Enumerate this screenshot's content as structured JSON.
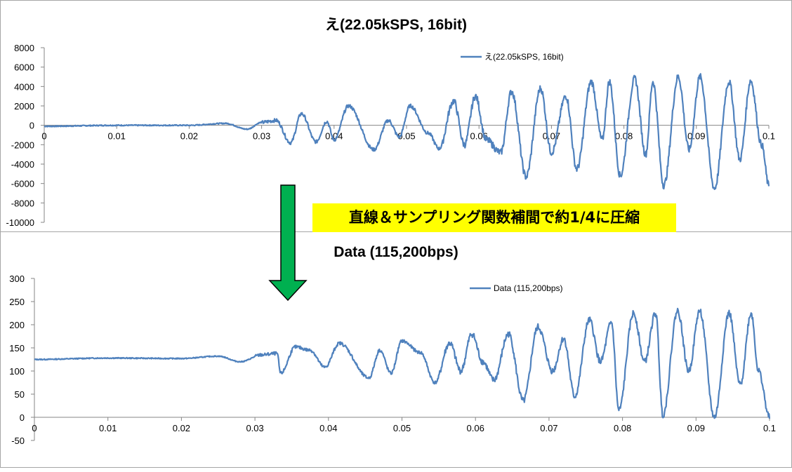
{
  "chart_data": [
    {
      "type": "line",
      "title": "え(22.05kSPS, 16bit)",
      "series": [
        {
          "name": "え(22.05kSPS, 16bit)",
          "color": "#4f81bd"
        }
      ],
      "xlim": [
        0,
        0.1
      ],
      "ylim": [
        -10000,
        8000
      ],
      "x_ticks": [
        "0",
        "0.01",
        "0.02",
        "0.03",
        "0.04",
        "0.05",
        "0.06",
        "0.07",
        "0.08",
        "0.09",
        "0.1"
      ],
      "y_ticks": [
        "8000",
        "6000",
        "4000",
        "2000",
        "0",
        "-2000",
        "-4000",
        "-6000",
        "-8000",
        "-10000"
      ],
      "legend": "top-right",
      "grid": false,
      "waveform_points": [
        [
          0,
          -100
        ],
        [
          0.01,
          0
        ],
        [
          0.02,
          0
        ],
        [
          0.025,
          200
        ],
        [
          0.028,
          -400
        ],
        [
          0.03,
          300
        ],
        [
          0.032,
          500
        ],
        [
          0.034,
          -1800
        ],
        [
          0.0355,
          1200
        ],
        [
          0.0375,
          -1700
        ],
        [
          0.039,
          400
        ],
        [
          0.04,
          -1500
        ],
        [
          0.042,
          2000
        ],
        [
          0.0455,
          -2500
        ],
        [
          0.0475,
          500
        ],
        [
          0.049,
          -1200
        ],
        [
          0.0505,
          2000
        ],
        [
          0.053,
          -800
        ],
        [
          0.0545,
          -2400
        ],
        [
          0.0565,
          2500
        ],
        [
          0.058,
          -2000
        ],
        [
          0.0595,
          3000
        ],
        [
          0.061,
          -1500
        ],
        [
          0.063,
          -2800
        ],
        [
          0.0645,
          3500
        ],
        [
          0.0665,
          -5300
        ],
        [
          0.0685,
          3800
        ],
        [
          0.07,
          -2800
        ],
        [
          0.072,
          3000
        ],
        [
          0.0735,
          -4500
        ],
        [
          0.0755,
          4500
        ],
        [
          0.077,
          -1500
        ],
        [
          0.078,
          4500
        ],
        [
          0.0795,
          -5200
        ],
        [
          0.0815,
          4800
        ],
        [
          0.083,
          -3000
        ],
        [
          0.084,
          4500
        ],
        [
          0.0855,
          -6200
        ],
        [
          0.0875,
          5000
        ],
        [
          0.089,
          -2500
        ],
        [
          0.0905,
          5000
        ],
        [
          0.0925,
          -6500
        ],
        [
          0.0945,
          4500
        ],
        [
          0.096,
          -3500
        ],
        [
          0.0975,
          4600
        ],
        [
          0.099,
          -2000
        ],
        [
          0.1,
          -6200
        ]
      ]
    },
    {
      "type": "line",
      "title": "Data (115,200bps)",
      "series": [
        {
          "name": "Data (115,200bps)",
          "color": "#4f81bd"
        }
      ],
      "xlim": [
        0,
        0.1
      ],
      "ylim": [
        -50,
        300
      ],
      "x_ticks": [
        "0",
        "0.01",
        "0.02",
        "0.03",
        "0.04",
        "0.05",
        "0.06",
        "0.07",
        "0.08",
        "0.09",
        "0.1"
      ],
      "y_ticks": [
        "300",
        "250",
        "200",
        "150",
        "100",
        "50",
        "0",
        "-50"
      ],
      "legend": "top-right",
      "grid": false,
      "waveform_points": [
        [
          0,
          125
        ],
        [
          0.01,
          128
        ],
        [
          0.02,
          127
        ],
        [
          0.025,
          132
        ],
        [
          0.028,
          120
        ],
        [
          0.031,
          135
        ],
        [
          0.033,
          138
        ],
        [
          0.0335,
          95
        ],
        [
          0.0355,
          152
        ],
        [
          0.0375,
          145
        ],
        [
          0.0395,
          108
        ],
        [
          0.0415,
          160
        ],
        [
          0.0455,
          85
        ],
        [
          0.047,
          145
        ],
        [
          0.0485,
          95
        ],
        [
          0.05,
          165
        ],
        [
          0.0525,
          140
        ],
        [
          0.0545,
          75
        ],
        [
          0.0565,
          160
        ],
        [
          0.058,
          100
        ],
        [
          0.0595,
          180
        ],
        [
          0.061,
          120
        ],
        [
          0.0625,
          80
        ],
        [
          0.0645,
          180
        ],
        [
          0.0665,
          35
        ],
        [
          0.0685,
          195
        ],
        [
          0.0705,
          100
        ],
        [
          0.072,
          170
        ],
        [
          0.0735,
          45
        ],
        [
          0.0755,
          210
        ],
        [
          0.077,
          120
        ],
        [
          0.0785,
          205
        ],
        [
          0.0795,
          15
        ],
        [
          0.0815,
          225
        ],
        [
          0.083,
          120
        ],
        [
          0.0845,
          225
        ],
        [
          0.0855,
          5
        ],
        [
          0.0875,
          230
        ],
        [
          0.089,
          100
        ],
        [
          0.0905,
          230
        ],
        [
          0.0925,
          0
        ],
        [
          0.0945,
          225
        ],
        [
          0.096,
          70
        ],
        [
          0.0975,
          225
        ],
        [
          0.0985,
          100
        ],
        [
          0.1,
          0
        ]
      ]
    }
  ],
  "callout_text": "直線＆サンプリング関数補間で約1/4に圧縮",
  "arrow_color": "#00b050",
  "callout_color": "#ffff00"
}
